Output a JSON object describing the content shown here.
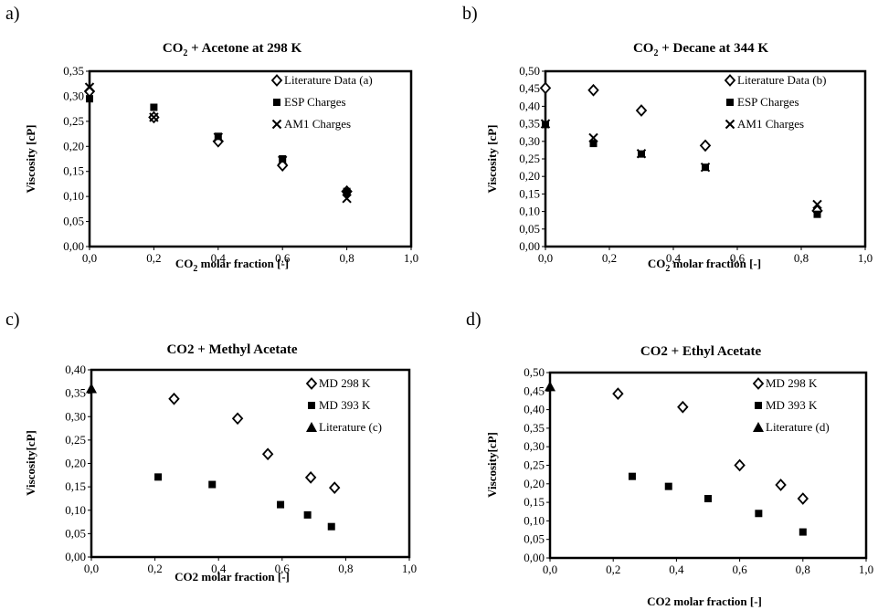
{
  "chart_data": [
    {
      "panel_label": "a)",
      "type": "scatter",
      "title": {
        "pre": "CO",
        "sub": "2",
        "post": " + Acetone at 298 K"
      },
      "xlabel": {
        "pre": "CO",
        "sub": "2",
        "post": " molar fraction [-]"
      },
      "ylabel": "Viscosity [cP]",
      "xlim": [
        0,
        1
      ],
      "ylim": [
        0,
        0.35
      ],
      "xticks": [
        "0,0",
        "0,2",
        "0,4",
        "0,6",
        "0,8",
        "1,0"
      ],
      "yticks": [
        "0,00",
        "0,05",
        "0,10",
        "0,15",
        "0,20",
        "0,25",
        "0,30",
        "0,35"
      ],
      "grid": false,
      "legend_position": "top-right",
      "series": [
        {
          "name": "Literature Data (a)",
          "marker": "diamond",
          "points": [
            [
              0.0,
              0.31
            ],
            [
              0.2,
              0.258
            ],
            [
              0.4,
              0.21
            ],
            [
              0.6,
              0.162
            ],
            [
              0.8,
              0.11
            ]
          ]
        },
        {
          "name": "ESP Charges",
          "marker": "square",
          "points": [
            [
              0.0,
              0.295
            ],
            [
              0.2,
              0.278
            ],
            [
              0.4,
              0.22
            ],
            [
              0.6,
              0.175
            ],
            [
              0.8,
              0.11
            ]
          ]
        },
        {
          "name": "AM1 Charges",
          "marker": "x",
          "points": [
            [
              0.0,
              0.318
            ],
            [
              0.2,
              0.258
            ],
            [
              0.4,
              0.218
            ],
            [
              0.6,
              0.172
            ],
            [
              0.8,
              0.096
            ]
          ]
        }
      ]
    },
    {
      "panel_label": "b)",
      "type": "scatter",
      "title": {
        "pre": "CO",
        "sub": "2",
        "post": " + Decane at 344 K"
      },
      "xlabel": {
        "pre": "CO",
        "sub": "2",
        "post": " molar fraction [-]"
      },
      "ylabel": "Viscosity [cP]",
      "xlim": [
        0,
        1
      ],
      "ylim": [
        0,
        0.5
      ],
      "xticks": [
        "0,0",
        "0,2",
        "0,4",
        "0,6",
        "0,8",
        "1,0"
      ],
      "yticks": [
        "0,00",
        "0,05",
        "0,10",
        "0,15",
        "0,20",
        "0,25",
        "0,30",
        "0,35",
        "0,40",
        "0,45",
        "0,50"
      ],
      "grid": false,
      "legend_position": "top-right",
      "series": [
        {
          "name": "Literature Data (b)",
          "marker": "diamond",
          "points": [
            [
              0.0,
              0.452
            ],
            [
              0.15,
              0.446
            ],
            [
              0.3,
              0.388
            ],
            [
              0.5,
              0.288
            ],
            [
              0.85,
              0.102
            ]
          ]
        },
        {
          "name": "ESP Charges",
          "marker": "square",
          "points": [
            [
              0.0,
              0.348
            ],
            [
              0.15,
              0.294
            ],
            [
              0.3,
              0.264
            ],
            [
              0.5,
              0.226
            ],
            [
              0.85,
              0.092
            ]
          ]
        },
        {
          "name": "AM1 Charges",
          "marker": "x",
          "points": [
            [
              0.0,
              0.35
            ],
            [
              0.15,
              0.31
            ],
            [
              0.3,
              0.265
            ],
            [
              0.5,
              0.226
            ],
            [
              0.85,
              0.12
            ]
          ]
        }
      ]
    },
    {
      "panel_label": "c)",
      "type": "scatter",
      "title": {
        "pre": "CO2 + Methyl Acetate",
        "sub": "",
        "post": ""
      },
      "xlabel": {
        "pre": "CO2 molar fraction [-]",
        "sub": "",
        "post": ""
      },
      "ylabel": "Viscosity[cP]",
      "xlim": [
        0,
        1
      ],
      "ylim": [
        0,
        0.4
      ],
      "xticks": [
        "0,0",
        "0,2",
        "0,4",
        "0,6",
        "0,8",
        "1,0"
      ],
      "yticks": [
        "0,00",
        "0,05",
        "0,10",
        "0,15",
        "0,20",
        "0,25",
        "0,30",
        "0,35",
        "0,40"
      ],
      "grid": false,
      "legend_position": "top-right",
      "series": [
        {
          "name": "MD 298 K",
          "marker": "diamond",
          "points": [
            [
              0.26,
              0.338
            ],
            [
              0.46,
              0.296
            ],
            [
              0.555,
              0.22
            ],
            [
              0.69,
              0.17
            ],
            [
              0.765,
              0.148
            ]
          ]
        },
        {
          "name": "MD 393 K",
          "marker": "square",
          "points": [
            [
              0.21,
              0.171
            ],
            [
              0.38,
              0.155
            ],
            [
              0.595,
              0.112
            ],
            [
              0.68,
              0.09
            ],
            [
              0.755,
              0.065
            ]
          ]
        },
        {
          "name": "Literature (c)",
          "marker": "triangle",
          "points": [
            [
              0.0,
              0.36
            ]
          ]
        }
      ]
    },
    {
      "panel_label": "d)",
      "type": "scatter",
      "title": {
        "pre": "CO2 + Ethyl Acetate",
        "sub": "",
        "post": ""
      },
      "xlabel": {
        "pre": "CO2 molar fraction [-]",
        "sub": "",
        "post": ""
      },
      "ylabel": "Viscosity[cP]",
      "xlim": [
        0,
        1
      ],
      "ylim": [
        0,
        0.5
      ],
      "xticks": [
        "0,0",
        "0,2",
        "0,4",
        "0,6",
        "0,8",
        "1,0"
      ],
      "yticks": [
        "0,00",
        "0,05",
        "0,10",
        "0,15",
        "0,20",
        "0,25",
        "0,30",
        "0,35",
        "0,40",
        "0,45",
        "0,50"
      ],
      "grid": false,
      "legend_position": "top-right",
      "series": [
        {
          "name": "MD 298 K",
          "marker": "diamond",
          "points": [
            [
              0.215,
              0.443
            ],
            [
              0.42,
              0.407
            ],
            [
              0.6,
              0.25
            ],
            [
              0.73,
              0.197
            ],
            [
              0.8,
              0.16
            ]
          ]
        },
        {
          "name": "MD 393 K",
          "marker": "square",
          "points": [
            [
              0.26,
              0.22
            ],
            [
              0.375,
              0.193
            ],
            [
              0.5,
              0.16
            ],
            [
              0.66,
              0.12
            ],
            [
              0.8,
              0.07
            ]
          ]
        },
        {
          "name": "Literature (d)",
          "marker": "triangle",
          "points": [
            [
              0.0,
              0.462
            ]
          ]
        }
      ]
    }
  ]
}
